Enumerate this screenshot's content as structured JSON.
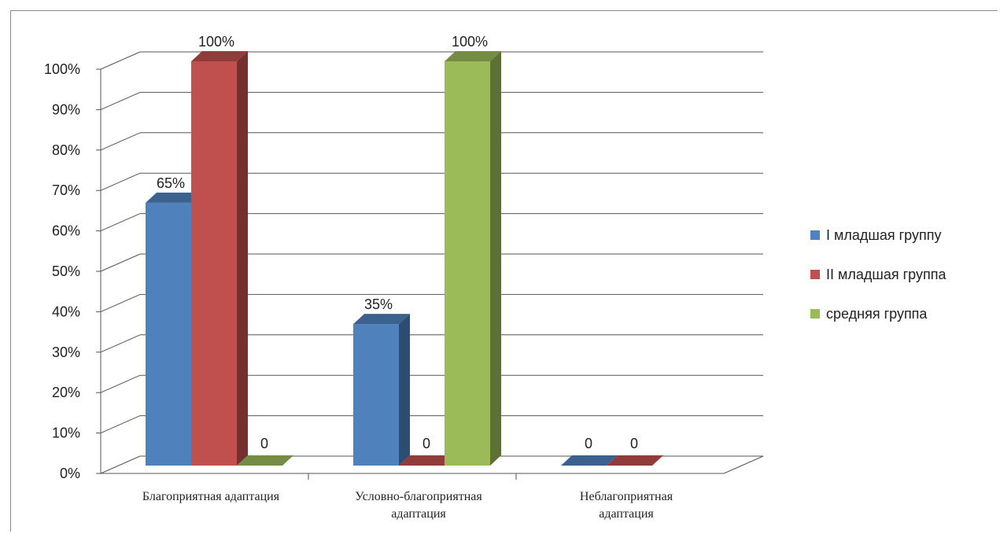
{
  "chart_data": {
    "type": "bar",
    "three_d": true,
    "categories": [
      [
        "Благоприятная адаптация"
      ],
      [
        "Условно-благоприятная",
        "адаптация"
      ],
      [
        "Неблагоприятная",
        "адаптация"
      ]
    ],
    "series": [
      {
        "name": "I младшая группу",
        "values": [
          65,
          35,
          0
        ],
        "labels": [
          "65%",
          "35%",
          "0"
        ],
        "color": "#4f81bd"
      },
      {
        "name": "II младшая группа",
        "values": [
          100,
          0,
          0
        ],
        "labels": [
          "100%",
          "0",
          "0"
        ],
        "color": "#c0504d"
      },
      {
        "name": "средняя группа",
        "values": [
          0,
          100,
          null
        ],
        "labels": [
          "0",
          "100%",
          ""
        ],
        "color": "#9bbb59"
      }
    ],
    "y_ticks": [
      "0%",
      "10%",
      "20%",
      "30%",
      "40%",
      "50%",
      "60%",
      "70%",
      "80%",
      "90%",
      "100%"
    ],
    "ylim": [
      0,
      100
    ],
    "grid": true,
    "legend_position": "right"
  }
}
